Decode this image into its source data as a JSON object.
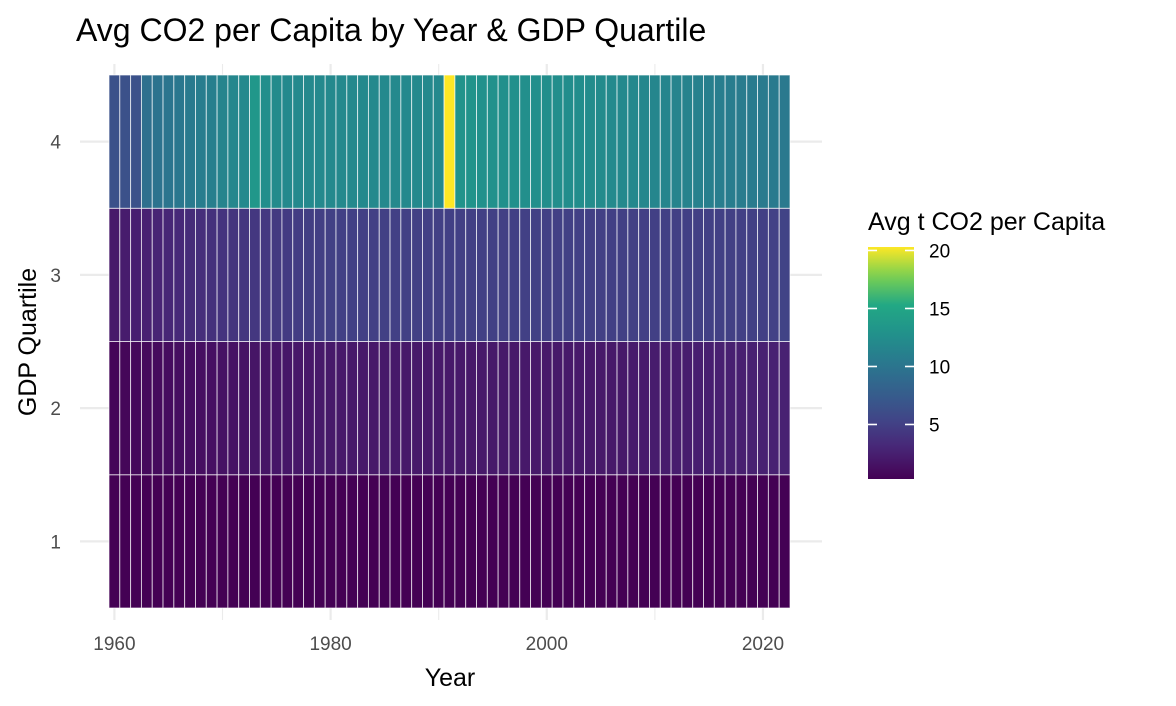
{
  "chart_data": {
    "type": "heatmap",
    "title": "Avg CO2 per Capita by Year & GDP Quartile",
    "xlabel": "Year",
    "ylabel": "GDP Quartile",
    "x_start": 1960,
    "x_end": 2022,
    "xlim": [
      1959.5,
      2022.5
    ],
    "x_ticks": [
      1960,
      1980,
      2000,
      2020
    ],
    "x_minor_ticks": [
      1970,
      1990,
      2010
    ],
    "y_categories": [
      "1",
      "2",
      "3",
      "4"
    ],
    "colormap": "viridis",
    "legend": {
      "title": "Avg t CO2 per Capita",
      "position": "right",
      "range": [
        0.3,
        20.3
      ],
      "ticks": [
        5,
        10,
        15,
        20
      ]
    },
    "series": [
      {
        "quartile": "1",
        "values": [
          0.3,
          0.3,
          0.3,
          0.3,
          0.3,
          0.3,
          0.3,
          0.3,
          0.3,
          0.3,
          0.3,
          0.3,
          0.3,
          0.3,
          0.3,
          0.3,
          0.3,
          0.3,
          0.3,
          0.3,
          0.3,
          0.3,
          0.3,
          0.3,
          0.3,
          0.3,
          0.3,
          0.3,
          0.3,
          0.3,
          0.3,
          0.3,
          0.3,
          0.3,
          0.3,
          0.3,
          0.3,
          0.3,
          0.3,
          0.3,
          0.3,
          0.3,
          0.3,
          0.3,
          0.3,
          0.3,
          0.3,
          0.3,
          0.3,
          0.3,
          0.3,
          0.3,
          0.3,
          0.3,
          0.3,
          0.3,
          0.3,
          0.3,
          0.3,
          0.3,
          0.3,
          0.3,
          0.3
        ]
      },
      {
        "quartile": "2",
        "values": [
          0.6,
          0.7,
          0.8,
          0.9,
          1.0,
          1.1,
          1.2,
          1.3,
          1.3,
          1.4,
          1.5,
          1.5,
          1.6,
          1.7,
          1.7,
          1.8,
          1.8,
          1.9,
          1.9,
          2.0,
          2.0,
          2.0,
          2.0,
          2.0,
          2.0,
          2.0,
          2.0,
          2.0,
          2.0,
          2.0,
          2.0,
          2.0,
          2.0,
          2.0,
          2.0,
          2.0,
          2.0,
          2.0,
          2.0,
          2.0,
          2.0,
          2.0,
          2.0,
          2.0,
          2.0,
          2.0,
          2.0,
          2.0,
          2.1,
          2.1,
          2.2,
          2.2,
          2.3,
          2.3,
          2.4,
          2.4,
          2.5,
          2.5,
          2.5,
          2.6,
          2.6,
          2.6,
          2.6
        ]
      },
      {
        "quartile": "3",
        "values": [
          2.0,
          2.2,
          2.4,
          2.6,
          2.8,
          3.0,
          3.2,
          3.4,
          3.6,
          3.8,
          4.0,
          4.1,
          4.2,
          4.3,
          4.4,
          4.5,
          4.6,
          4.7,
          4.8,
          4.9,
          5.0,
          5.0,
          5.0,
          5.0,
          5.0,
          5.0,
          5.0,
          5.0,
          5.0,
          5.0,
          5.0,
          5.0,
          5.0,
          5.0,
          5.0,
          5.0,
          5.0,
          5.0,
          5.0,
          5.0,
          5.0,
          5.0,
          5.0,
          5.0,
          5.0,
          5.0,
          5.0,
          5.0,
          5.0,
          5.0,
          5.0,
          5.0,
          5.0,
          5.0,
          5.0,
          5.0,
          5.0,
          5.0,
          5.0,
          5.0,
          5.0,
          5.1,
          5.2
        ]
      },
      {
        "quartile": "4",
        "values": [
          6.5,
          6.5,
          6.5,
          9.5,
          9.8,
          10.0,
          10.2,
          10.5,
          10.8,
          11.0,
          11.5,
          11.8,
          12.0,
          13.5,
          12.5,
          12.2,
          12.0,
          12.0,
          12.0,
          12.0,
          12.0,
          12.0,
          12.0,
          12.0,
          12.0,
          12.0,
          12.0,
          12.0,
          12.0,
          12.0,
          12.0,
          20.3,
          13.0,
          13.0,
          12.8,
          12.8,
          12.7,
          12.7,
          12.6,
          12.6,
          12.5,
          12.5,
          12.4,
          12.4,
          12.3,
          12.2,
          12.1,
          12.0,
          11.9,
          11.8,
          11.7,
          11.6,
          11.5,
          11.4,
          11.2,
          11.0,
          10.9,
          10.8,
          10.7,
          10.6,
          10.5,
          10.5,
          10.4
        ]
      }
    ]
  }
}
